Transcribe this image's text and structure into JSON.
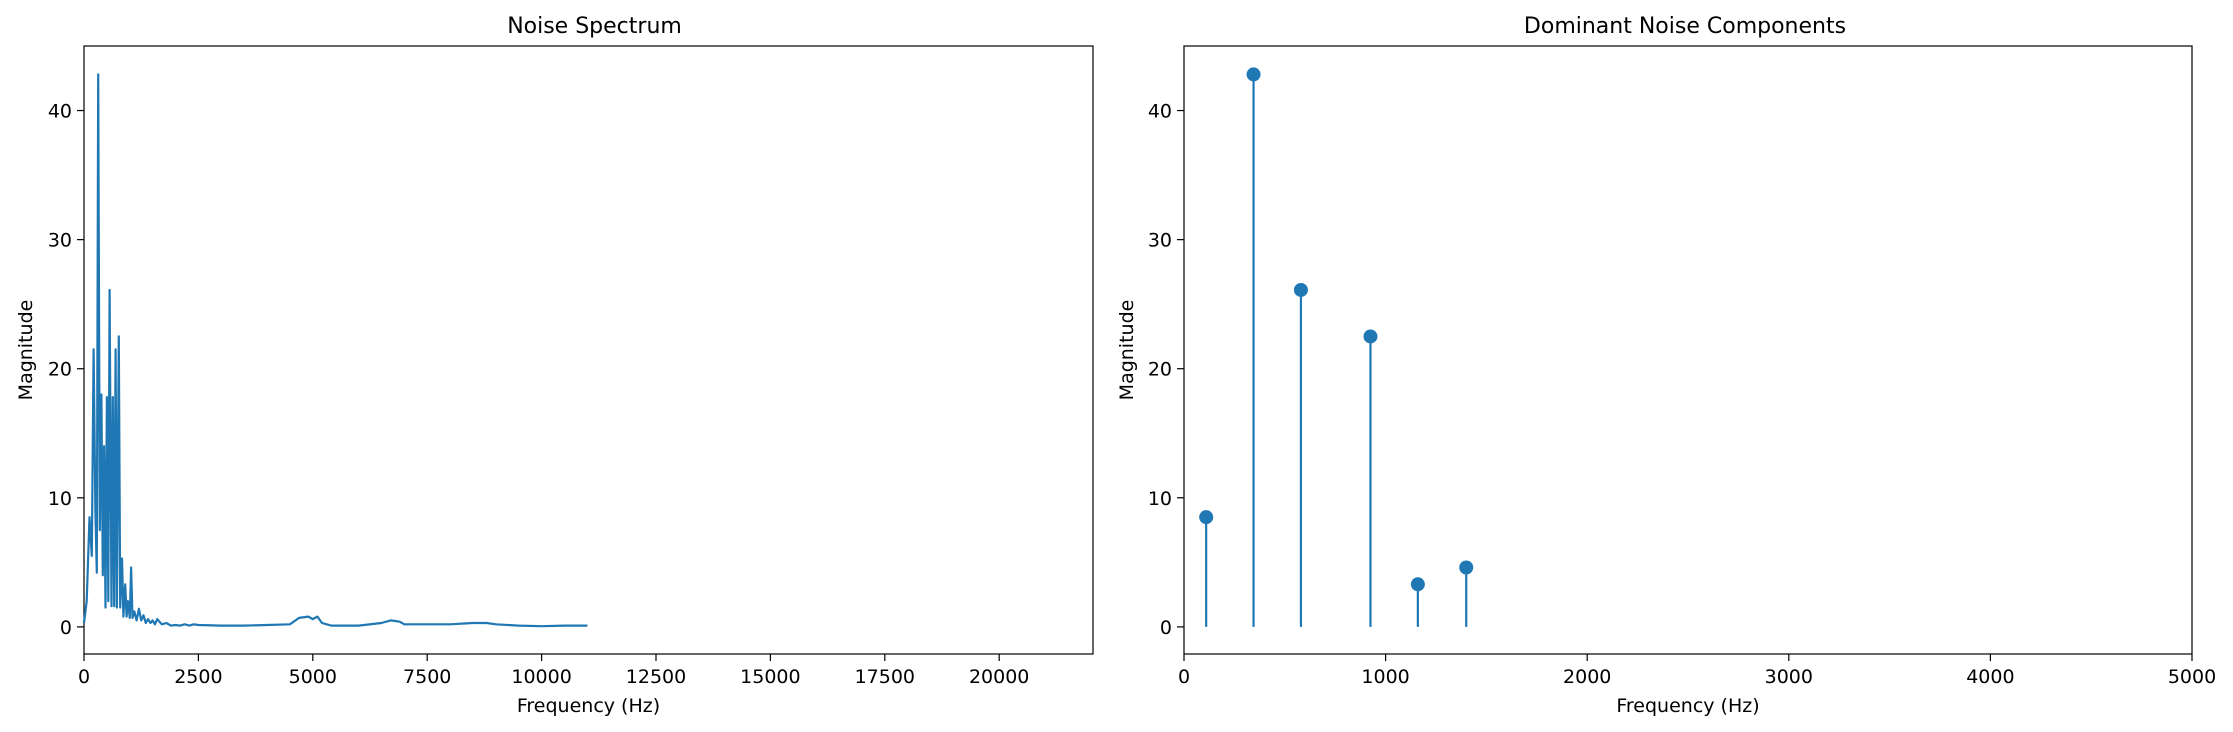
{
  "colors": {
    "series": "#1f77b4",
    "axes": "#000000",
    "background": "#ffffff"
  },
  "chart_data": [
    {
      "type": "line",
      "title": "Noise Spectrum",
      "xlabel": "Frequency (Hz)",
      "ylabel": "Magnitude",
      "xlim": [
        0,
        22050
      ],
      "ylim": [
        -2.1,
        45
      ],
      "xticks": [
        0,
        2500,
        5000,
        7500,
        10000,
        12500,
        15000,
        17500,
        20000
      ],
      "xtick_labels": [
        "0",
        "2500",
        "5000",
        "7500",
        "10000",
        "12500",
        "15000",
        "17500",
        "20000"
      ],
      "yticks": [
        0,
        10,
        20,
        30,
        40
      ],
      "ytick_labels": [
        "0",
        "10",
        "20",
        "30",
        "40"
      ],
      "grid": false,
      "legend": "none",
      "x": [
        0,
        60,
        120,
        170,
        210,
        250,
        280,
        310,
        345,
        380,
        410,
        440,
        470,
        500,
        530,
        560,
        600,
        630,
        660,
        690,
        720,
        760,
        790,
        830,
        860,
        900,
        930,
        960,
        1000,
        1030,
        1060,
        1100,
        1150,
        1200,
        1250,
        1300,
        1350,
        1400,
        1450,
        1500,
        1550,
        1600,
        1700,
        1800,
        1900,
        2000,
        2100,
        2200,
        2300,
        2400,
        2500,
        3000,
        3500,
        4000,
        4500,
        4700,
        4900,
        5000,
        5100,
        5200,
        5400,
        6000,
        6500,
        6700,
        6900,
        7000,
        7500,
        8000,
        8500,
        8800,
        9000,
        9500,
        10000,
        10500,
        11000
      ],
      "y": [
        0.3,
        2.0,
        8.5,
        5.5,
        21.5,
        9.0,
        4.2,
        42.8,
        7.5,
        18.0,
        4.0,
        14.0,
        1.5,
        17.8,
        2.0,
        26.1,
        1.6,
        17.8,
        1.6,
        21.5,
        1.5,
        22.5,
        1.5,
        5.3,
        0.8,
        3.3,
        0.8,
        2.0,
        0.7,
        4.6,
        0.7,
        1.2,
        0.5,
        1.4,
        0.5,
        0.9,
        0.3,
        0.6,
        0.3,
        0.5,
        0.2,
        0.6,
        0.2,
        0.3,
        0.1,
        0.15,
        0.1,
        0.2,
        0.1,
        0.2,
        0.15,
        0.1,
        0.1,
        0.15,
        0.2,
        0.7,
        0.8,
        0.6,
        0.8,
        0.3,
        0.1,
        0.1,
        0.3,
        0.5,
        0.4,
        0.2,
        0.2,
        0.2,
        0.3,
        0.3,
        0.2,
        0.1,
        0.05,
        0.1,
        0.1
      ]
    },
    {
      "type": "stem",
      "title": "Dominant Noise Components",
      "xlabel": "Frequency (Hz)",
      "ylabel": "Magnitude",
      "xlim": [
        0,
        5000
      ],
      "ylim": [
        -2.1,
        45
      ],
      "xticks": [
        0,
        1000,
        2000,
        3000,
        4000,
        5000
      ],
      "xtick_labels": [
        "0",
        "1000",
        "2000",
        "3000",
        "4000",
        "5000"
      ],
      "yticks": [
        0,
        10,
        20,
        30,
        40
      ],
      "ytick_labels": [
        "0",
        "10",
        "20",
        "30",
        "40"
      ],
      "grid": false,
      "legend": "none",
      "x": [
        110,
        345,
        580,
        925,
        1160,
        1400
      ],
      "y": [
        8.5,
        42.8,
        26.1,
        22.5,
        3.3,
        4.6
      ]
    }
  ]
}
